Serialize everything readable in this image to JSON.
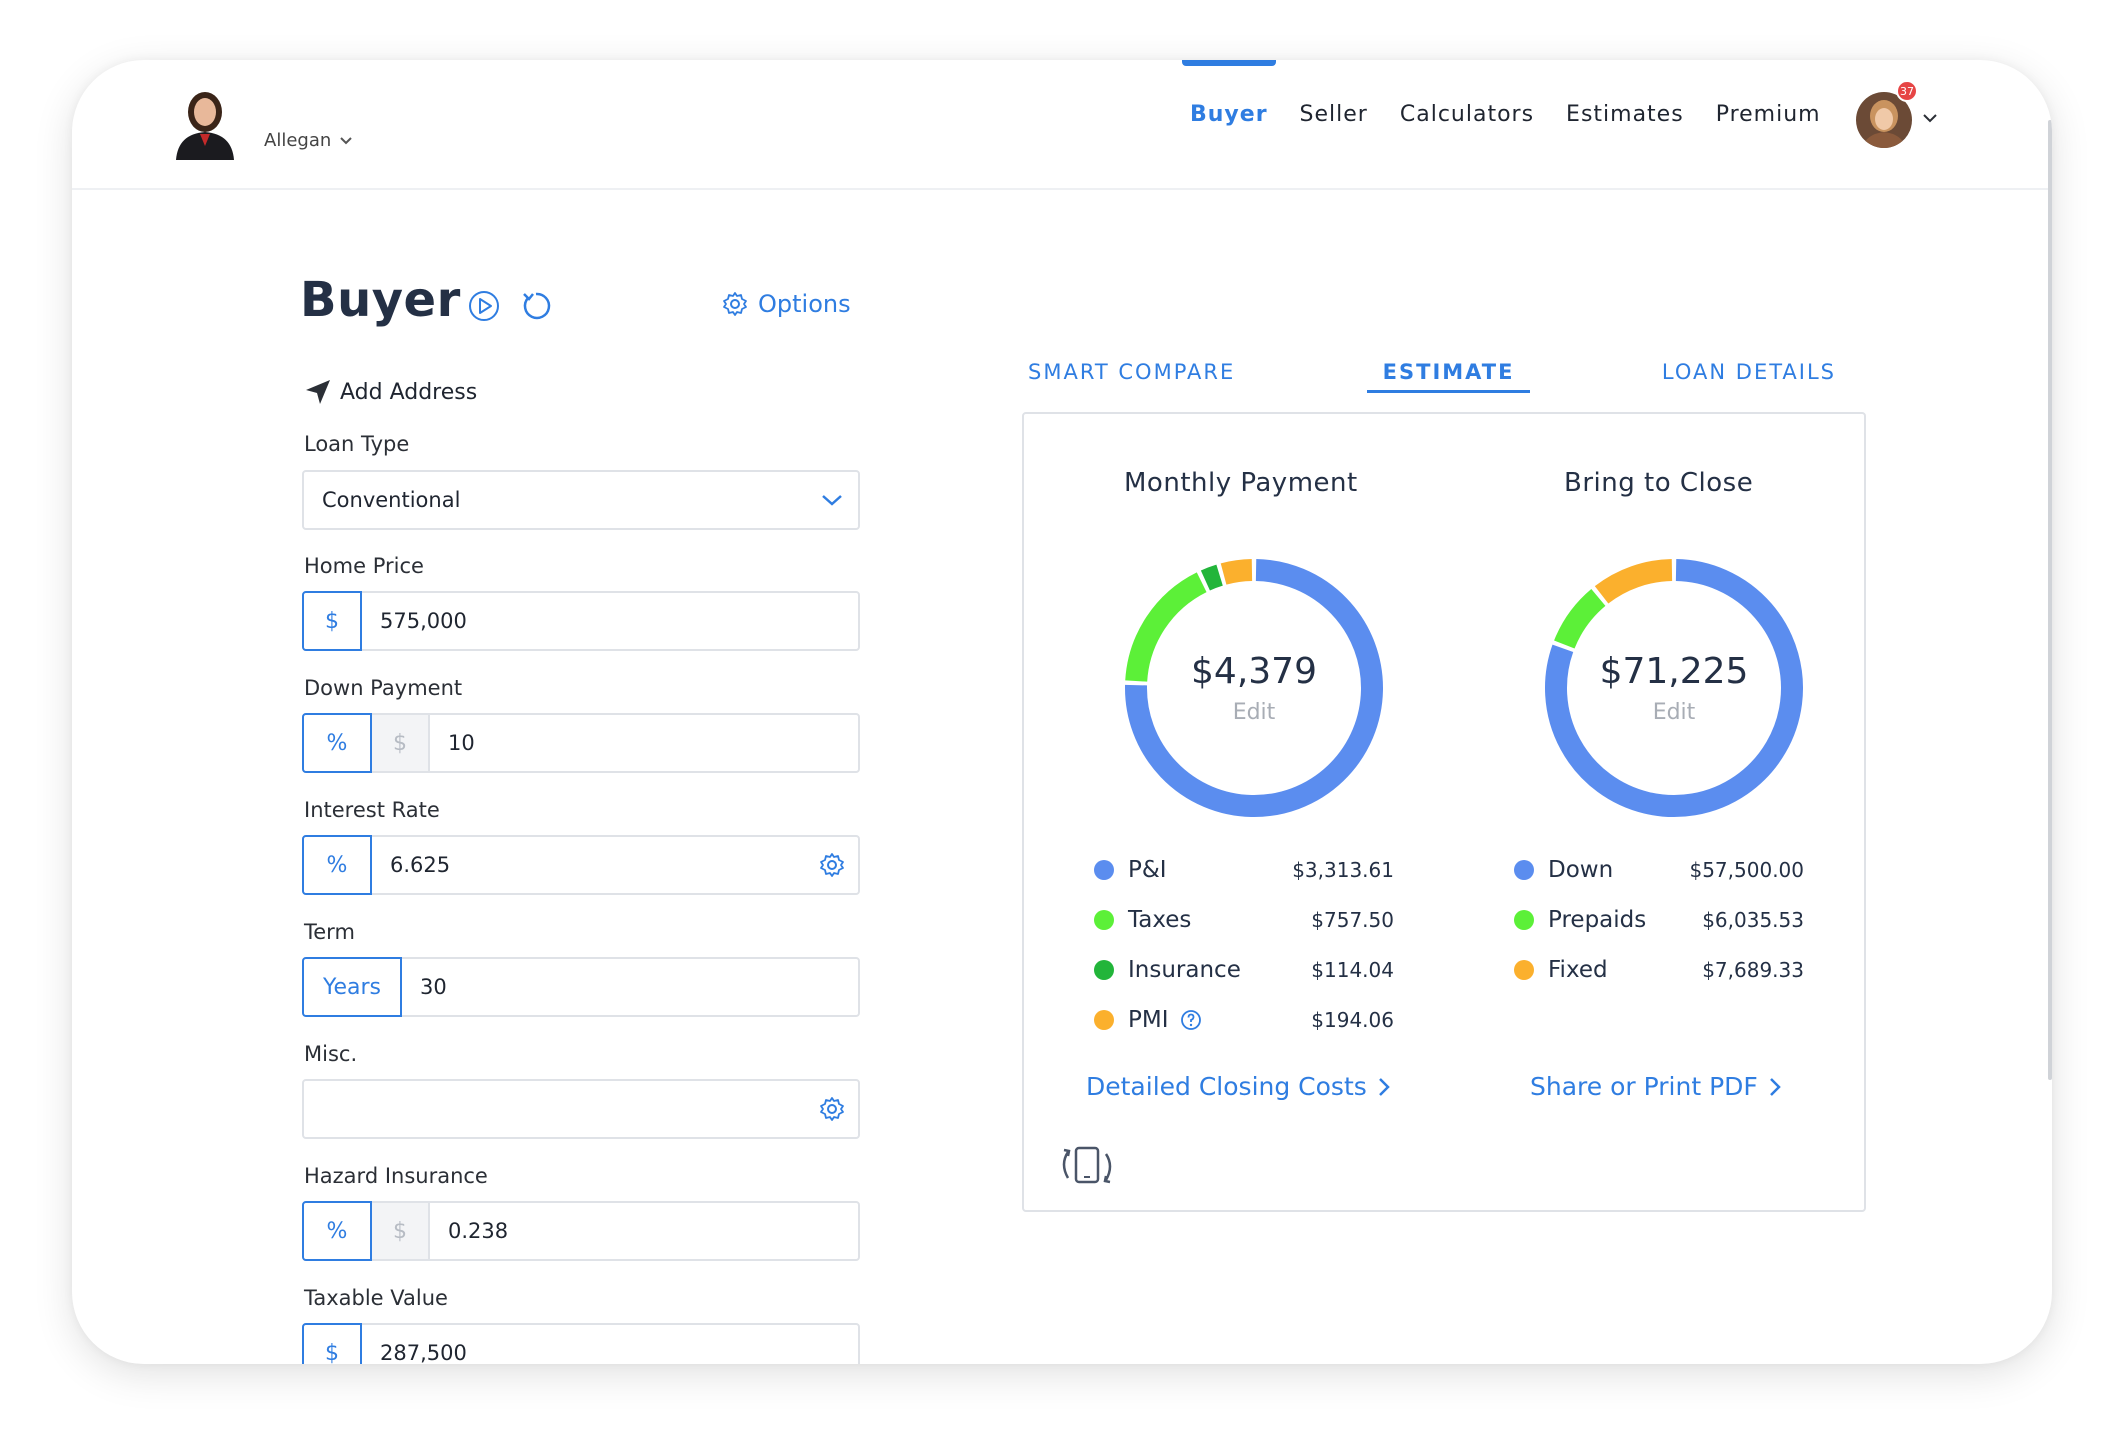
{
  "header": {
    "region": "Allegan",
    "nav": [
      "Buyer",
      "Seller",
      "Calculators",
      "Estimates",
      "Premium"
    ],
    "active_nav": "Buyer",
    "notification_count": "37"
  },
  "page": {
    "title": "Buyer",
    "options_label": "Options",
    "add_address": "Add Address"
  },
  "form": {
    "loan_type": {
      "label": "Loan Type",
      "value": "Conventional"
    },
    "home_price": {
      "label": "Home Price",
      "addon": "$",
      "value": "575,000"
    },
    "down_payment": {
      "label": "Down Payment",
      "addon": "%",
      "alt_addon": "$",
      "value": "10"
    },
    "interest_rate": {
      "label": "Interest Rate",
      "addon": "%",
      "value": "6.625"
    },
    "term": {
      "label": "Term",
      "addon": "Years",
      "value": "30"
    },
    "misc": {
      "label": "Misc.",
      "value": ""
    },
    "hazard_insurance": {
      "label": "Hazard Insurance",
      "addon": "%",
      "alt_addon": "$",
      "value": "0.238"
    },
    "taxable_value": {
      "label": "Taxable Value",
      "addon": "$",
      "value": "287,500"
    }
  },
  "tabs": [
    "SMART COMPARE",
    "ESTIMATE",
    "LOAN DETAILS"
  ],
  "active_tab": "ESTIMATE",
  "monthly": {
    "title": "Monthly Payment",
    "amount": "$4,379",
    "edit": "Edit",
    "items": [
      {
        "name": "P&I",
        "amount": "$3,313.61",
        "value": 3313.61,
        "color": "#5b8def"
      },
      {
        "name": "Taxes",
        "amount": "$757.50",
        "value": 757.5,
        "color": "#5cf038"
      },
      {
        "name": "Insurance",
        "amount": "$114.04",
        "value": 114.04,
        "color": "#22b53a"
      },
      {
        "name": "PMI",
        "amount": "$194.06",
        "value": 194.06,
        "color": "#fbb02d"
      }
    ]
  },
  "close": {
    "title": "Bring to Close",
    "amount": "$71,225",
    "edit": "Edit",
    "items": [
      {
        "name": "Down",
        "amount": "$57,500.00",
        "value": 57500.0,
        "color": "#5b8def"
      },
      {
        "name": "Prepaids",
        "amount": "$6,035.53",
        "value": 6035.53,
        "color": "#5cf038"
      },
      {
        "name": "Fixed",
        "amount": "$7,689.33",
        "value": 7689.33,
        "color": "#fbb02d"
      }
    ]
  },
  "links": {
    "closing_costs": "Detailed Closing Costs",
    "share": "Share or Print PDF"
  },
  "colors": {
    "accent": "#2f7de1"
  }
}
